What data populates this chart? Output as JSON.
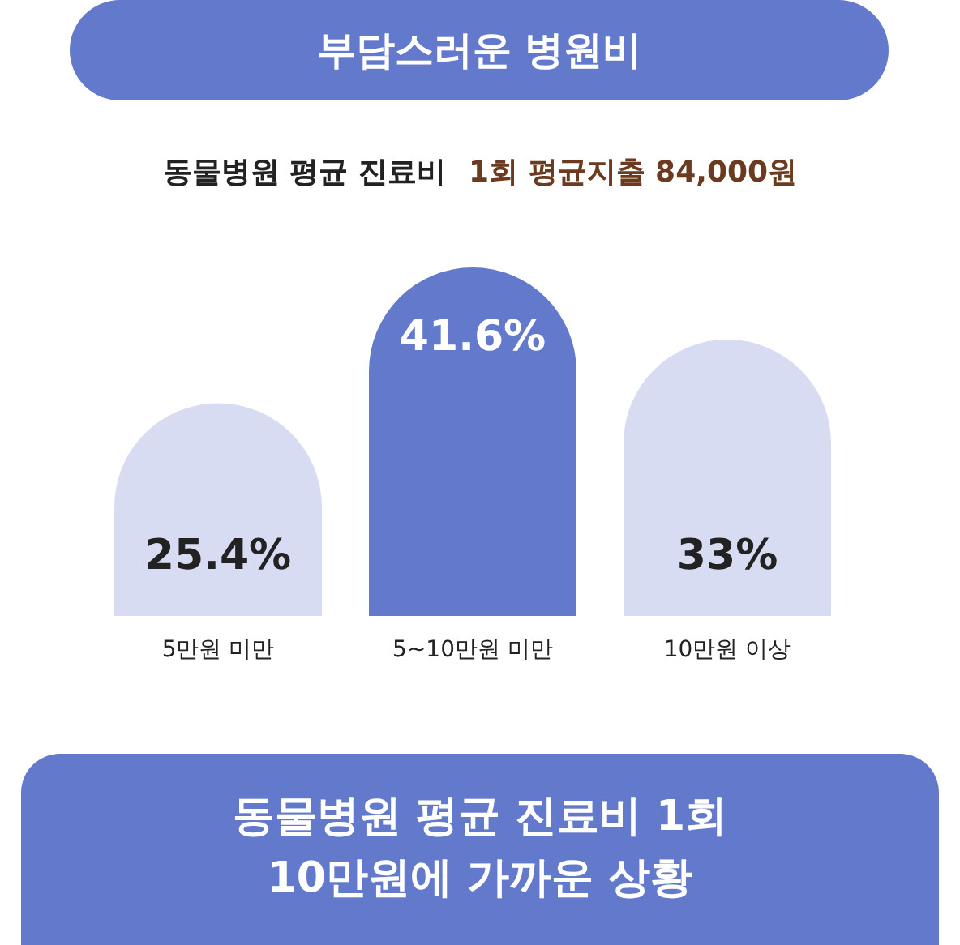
{
  "chart_data": {
    "type": "bar",
    "title": "부담스러운 병원비",
    "subtitle": "동물병원 평균 진료비",
    "annotations": [
      "1회 평균지출 84,000원",
      "동물병원 평균 진료비 1회 10만원에 가까운 상황"
    ],
    "categories": [
      "5만원 미만",
      "5~10만원 미만",
      "10만원 이상"
    ],
    "values": [
      25.4,
      41.6,
      33
    ],
    "colors": [
      "#d8dcf3",
      "#6379cc",
      "#d8dcf3"
    ],
    "value_labels": [
      "25.4%",
      "41.6%",
      "33%"
    ]
  }
}
